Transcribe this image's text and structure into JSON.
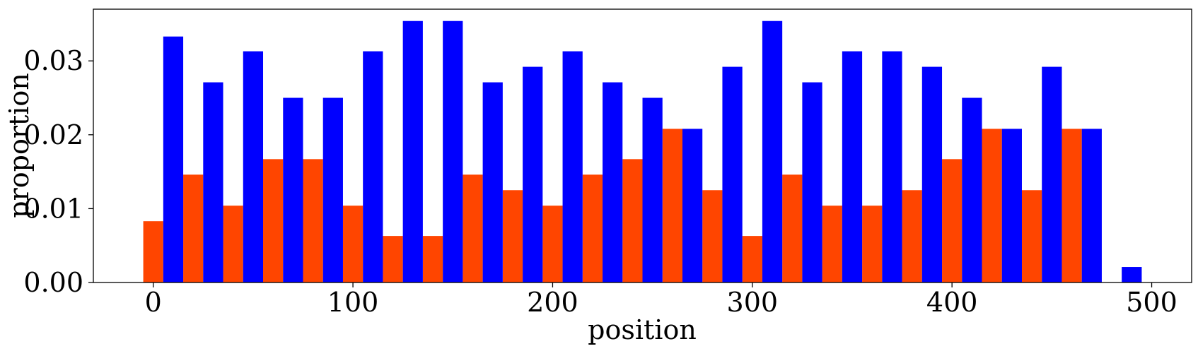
{
  "chart_data": {
    "type": "bar",
    "xlabel": "position",
    "ylabel": "proportion",
    "xlim": [
      -30,
      520
    ],
    "ylim": [
      0,
      0.037
    ],
    "grid": false,
    "legend": "none",
    "x_ticks": [
      0,
      100,
      200,
      300,
      400,
      500
    ],
    "x_tick_labels": [
      "0",
      "100",
      "200",
      "300",
      "400",
      "500"
    ],
    "y_ticks": [
      0,
      0.01,
      0.02,
      0.03
    ],
    "y_tick_labels": [
      "0.00",
      "0.01",
      "0.02",
      "0.03"
    ],
    "bar_width": 10,
    "series": [
      {
        "color": "#ff4500",
        "x": [
          0,
          20,
          40,
          60,
          80,
          100,
          120,
          140,
          160,
          180,
          200,
          220,
          240,
          260,
          280,
          300,
          320,
          340,
          360,
          380,
          400,
          420,
          440,
          460
        ],
        "values": [
          0.0083,
          0.0146,
          0.0104,
          0.0167,
          0.0167,
          0.0104,
          0.0063,
          0.0063,
          0.0146,
          0.0125,
          0.0104,
          0.0146,
          0.0167,
          0.0208,
          0.0125,
          0.0063,
          0.0146,
          0.0104,
          0.0104,
          0.0125,
          0.0167,
          0.0208,
          0.0125,
          0.0208
        ]
      },
      {
        "color": "#0000ff",
        "x": [
          10,
          30,
          50,
          70,
          90,
          110,
          130,
          150,
          170,
          190,
          210,
          230,
          250,
          270,
          290,
          310,
          330,
          350,
          370,
          390,
          410,
          430,
          450,
          470,
          490
        ],
        "values": [
          0.0333,
          0.0271,
          0.0313,
          0.025,
          0.025,
          0.0313,
          0.0354,
          0.0354,
          0.0271,
          0.0292,
          0.0313,
          0.0271,
          0.025,
          0.0208,
          0.0292,
          0.0354,
          0.0271,
          0.0313,
          0.0313,
          0.0292,
          0.025,
          0.0208,
          0.0292,
          0.0208,
          0.0021
        ]
      }
    ]
  }
}
